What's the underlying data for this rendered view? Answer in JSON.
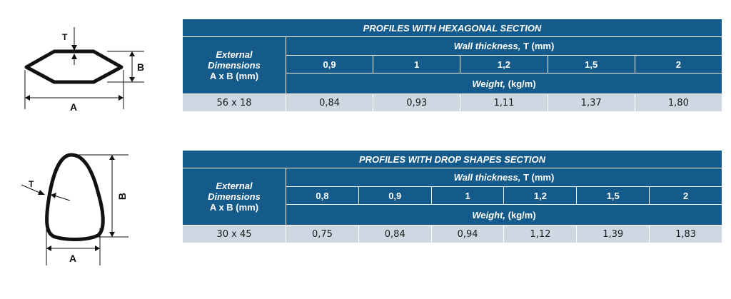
{
  "hexagonal": {
    "title": "PROFILES WITH HEXAGONAL SECTION",
    "ext_line1": "External",
    "ext_line2": "Dimensions",
    "ext_line3": "A x B (mm)",
    "wall_label": "Wall thickness,",
    "wall_unit": "T (mm)",
    "thicknesses": [
      "0,9",
      "1",
      "1,2",
      "1,5",
      "2"
    ],
    "weight_label": "Weight,",
    "weight_unit": "(kg/m)",
    "row": {
      "size": "56 x 18",
      "weights": [
        "0,84",
        "0,93",
        "1,11",
        "1,37",
        "1,80"
      ]
    },
    "diagram": {
      "label_t": "T",
      "label_a": "A",
      "label_b": "B"
    }
  },
  "drop": {
    "title": "PROFILES WITH DROP SHAPES SECTION",
    "ext_line1": "External",
    "ext_line2": "Dimensions",
    "ext_line3": "A x B (mm)",
    "wall_label": "Wall thickness,",
    "wall_unit": "T (mm)",
    "thicknesses": [
      "0,8",
      "0,9",
      "1",
      "1,2",
      "1,5",
      "2"
    ],
    "weight_label": "Weight,",
    "weight_unit": "(kg/m)",
    "row": {
      "size": "30 x 45",
      "weights": [
        "0,75",
        "0,84",
        "0,94",
        "1,12",
        "1,39",
        "1,83"
      ]
    },
    "diagram": {
      "label_t": "T",
      "label_a": "A",
      "label_b": "B"
    }
  },
  "colors": {
    "header": "#145a8a",
    "data_row": "#cdd8e2"
  }
}
